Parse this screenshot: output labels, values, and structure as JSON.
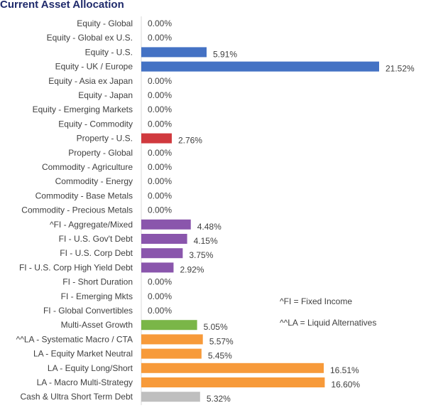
{
  "chart_data": {
    "type": "bar",
    "orientation": "horizontal",
    "title": "Current Asset Allocation",
    "value_format": "percent",
    "categories": [
      "Equity - Global",
      "Equity - Global ex U.S.",
      "Equity - U.S.",
      "Equity - UK / Europe",
      "Equity - Asia ex Japan",
      "Equity - Japan",
      "Equity - Emerging Markets",
      "Equity - Commodity",
      "Property - U.S.",
      "Property - Global",
      "Commodity - Agriculture",
      "Commodity - Energy",
      "Commodity - Base Metals",
      "Commodity - Precious Metals",
      "^FI - Aggregate/Mixed",
      "FI - U.S. Gov't Debt",
      "FI - U.S. Corp Debt",
      "FI - U.S. Corp High Yield Debt",
      "FI - Short Duration",
      "FI - Emerging Mkts",
      "FI - Global Convertibles",
      "Multi-Asset Growth",
      "^^LA - Systematic Macro / CTA",
      "LA - Equity Market Neutral",
      "LA - Equity Long/Short",
      "LA - Macro Multi-Strategy",
      "Cash & Ultra Short Term Debt"
    ],
    "values": [
      0.0,
      0.0,
      5.91,
      21.52,
      0.0,
      0.0,
      0.0,
      0.0,
      2.76,
      0.0,
      0.0,
      0.0,
      0.0,
      0.0,
      4.48,
      4.15,
      3.75,
      2.92,
      0.0,
      0.0,
      0.0,
      5.05,
      5.57,
      5.45,
      16.51,
      16.6,
      5.32
    ],
    "value_labels": [
      "0.00%",
      "0.00%",
      "5.91%",
      "21.52%",
      "0.00%",
      "0.00%",
      "0.00%",
      "0.00%",
      "2.76%",
      "0.00%",
      "0.00%",
      "0.00%",
      "0.00%",
      "0.00%",
      "4.48%",
      "4.15%",
      "3.75%",
      "2.92%",
      "0.00%",
      "0.00%",
      "0.00%",
      "5.05%",
      "5.57%",
      "5.45%",
      "16.51%",
      "16.60%",
      "5.32%"
    ],
    "bar_colors": [
      "#4472c4",
      "#4472c4",
      "#4472c4",
      "#4472c4",
      "#4472c4",
      "#4472c4",
      "#4472c4",
      "#4472c4",
      "#d0393e",
      "#d0393e",
      "#4472c4",
      "#4472c4",
      "#4472c4",
      "#4472c4",
      "#8a56ac",
      "#8a56ac",
      "#8a56ac",
      "#8a56ac",
      "#8a56ac",
      "#8a56ac",
      "#8a56ac",
      "#7ab648",
      "#f79a3a",
      "#f79a3a",
      "#f79a3a",
      "#f79a3a",
      "#bfbfbf"
    ],
    "xlim": [
      0,
      21.52
    ],
    "grid": false,
    "legend": "none",
    "annotations": [
      "^FI = Fixed Income",
      "^^LA = Liquid Alternatives"
    ]
  }
}
